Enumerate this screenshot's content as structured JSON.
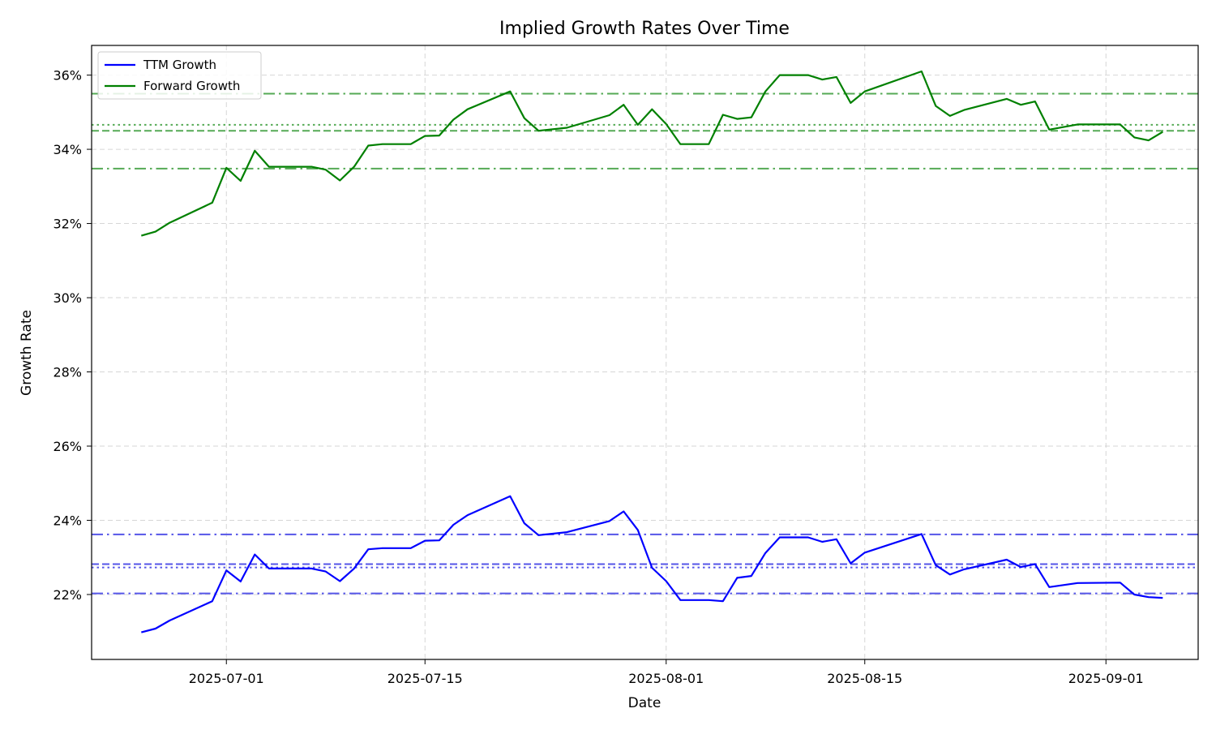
{
  "chart_data": {
    "type": "line",
    "title": "Implied Growth Rates Over Time",
    "xlabel": "Date",
    "ylabel": "Growth Rate",
    "x_range": [
      "2025-06-21T12:00",
      "2025-09-07T12:00"
    ],
    "ylim": [
      20.25,
      36.8
    ],
    "grid": true,
    "legend_position": "top-left",
    "x_ticks": [
      "2025-07-01",
      "2025-07-15",
      "2025-08-01",
      "2025-08-15",
      "2025-09-01"
    ],
    "y_ticks": [
      22,
      24,
      26,
      28,
      30,
      32,
      34,
      36
    ],
    "y_tick_format": "%",
    "series": [
      {
        "name": "TTM Growth",
        "color": "#0000ff",
        "points": [
          [
            "2025-06-25",
            20.98
          ],
          [
            "2025-06-26",
            21.08
          ],
          [
            "2025-06-27",
            21.3
          ],
          [
            "2025-06-30",
            21.82
          ],
          [
            "2025-07-01",
            22.65
          ],
          [
            "2025-07-02",
            22.35
          ],
          [
            "2025-07-03",
            23.08
          ],
          [
            "2025-07-04",
            22.7
          ],
          [
            "2025-07-07",
            22.7
          ],
          [
            "2025-07-08",
            22.62
          ],
          [
            "2025-07-09",
            22.36
          ],
          [
            "2025-07-10",
            22.7
          ],
          [
            "2025-07-11",
            23.22
          ],
          [
            "2025-07-12",
            23.25
          ],
          [
            "2025-07-14",
            23.25
          ],
          [
            "2025-07-15",
            23.45
          ],
          [
            "2025-07-16",
            23.46
          ],
          [
            "2025-07-17",
            23.88
          ],
          [
            "2025-07-18",
            24.14
          ],
          [
            "2025-07-21",
            24.65
          ],
          [
            "2025-07-22",
            23.92
          ],
          [
            "2025-07-23",
            23.6
          ],
          [
            "2025-07-25",
            23.68
          ],
          [
            "2025-07-28",
            23.98
          ],
          [
            "2025-07-29",
            24.24
          ],
          [
            "2025-07-30",
            23.74
          ],
          [
            "2025-07-31",
            22.72
          ],
          [
            "2025-08-01",
            22.36
          ],
          [
            "2025-08-02",
            21.85
          ],
          [
            "2025-08-04",
            21.85
          ],
          [
            "2025-08-05",
            21.82
          ],
          [
            "2025-08-06",
            22.45
          ],
          [
            "2025-08-07",
            22.5
          ],
          [
            "2025-08-08",
            23.12
          ],
          [
            "2025-08-09",
            23.54
          ],
          [
            "2025-08-11",
            23.54
          ],
          [
            "2025-08-12",
            23.42
          ],
          [
            "2025-08-13",
            23.49
          ],
          [
            "2025-08-14",
            22.84
          ],
          [
            "2025-08-15",
            23.13
          ],
          [
            "2025-08-19",
            23.63
          ],
          [
            "2025-08-20",
            22.79
          ],
          [
            "2025-08-21",
            22.54
          ],
          [
            "2025-08-22",
            22.68
          ],
          [
            "2025-08-25",
            22.94
          ],
          [
            "2025-08-26",
            22.74
          ],
          [
            "2025-08-27",
            22.82
          ],
          [
            "2025-08-28",
            22.2
          ],
          [
            "2025-08-30",
            22.31
          ],
          [
            "2025-09-02",
            22.32
          ],
          [
            "2025-09-03",
            22.0
          ],
          [
            "2025-09-04",
            21.93
          ],
          [
            "2025-09-05",
            21.91
          ]
        ]
      },
      {
        "name": "Forward Growth",
        "color": "#008000",
        "points": [
          [
            "2025-06-25",
            31.67
          ],
          [
            "2025-06-26",
            31.78
          ],
          [
            "2025-06-27",
            32.02
          ],
          [
            "2025-06-30",
            32.56
          ],
          [
            "2025-07-01",
            33.5
          ],
          [
            "2025-07-02",
            33.15
          ],
          [
            "2025-07-03",
            33.96
          ],
          [
            "2025-07-04",
            33.53
          ],
          [
            "2025-07-07",
            33.53
          ],
          [
            "2025-07-08",
            33.45
          ],
          [
            "2025-07-09",
            33.16
          ],
          [
            "2025-07-10",
            33.53
          ],
          [
            "2025-07-11",
            34.1
          ],
          [
            "2025-07-12",
            34.14
          ],
          [
            "2025-07-14",
            34.14
          ],
          [
            "2025-07-15",
            34.36
          ],
          [
            "2025-07-16",
            34.37
          ],
          [
            "2025-07-17",
            34.8
          ],
          [
            "2025-07-18",
            35.08
          ],
          [
            "2025-07-21",
            35.56
          ],
          [
            "2025-07-22",
            34.84
          ],
          [
            "2025-07-23",
            34.5
          ],
          [
            "2025-07-25",
            34.58
          ],
          [
            "2025-07-28",
            34.92
          ],
          [
            "2025-07-29",
            35.2
          ],
          [
            "2025-07-30",
            34.66
          ],
          [
            "2025-07-31",
            35.08
          ],
          [
            "2025-08-01",
            34.68
          ],
          [
            "2025-08-02",
            34.14
          ],
          [
            "2025-08-04",
            34.14
          ],
          [
            "2025-08-05",
            34.93
          ],
          [
            "2025-08-06",
            34.82
          ],
          [
            "2025-08-07",
            34.86
          ],
          [
            "2025-08-08",
            35.56
          ],
          [
            "2025-08-09",
            36.0
          ],
          [
            "2025-08-11",
            36.0
          ],
          [
            "2025-08-12",
            35.88
          ],
          [
            "2025-08-13",
            35.95
          ],
          [
            "2025-08-14",
            35.25
          ],
          [
            "2025-08-15",
            35.56
          ],
          [
            "2025-08-19",
            36.1
          ],
          [
            "2025-08-20",
            35.17
          ],
          [
            "2025-08-21",
            34.9
          ],
          [
            "2025-08-22",
            35.06
          ],
          [
            "2025-08-25",
            35.36
          ],
          [
            "2025-08-26",
            35.2
          ],
          [
            "2025-08-27",
            35.29
          ],
          [
            "2025-08-28",
            34.53
          ],
          [
            "2025-08-30",
            34.67
          ],
          [
            "2025-09-02",
            34.67
          ],
          [
            "2025-09-03",
            34.32
          ],
          [
            "2025-09-04",
            34.24
          ],
          [
            "2025-09-05",
            34.47
          ]
        ]
      }
    ],
    "reference_lines": [
      {
        "series": "TTM Growth",
        "value": 23.62,
        "style": "dashdot"
      },
      {
        "series": "TTM Growth",
        "value": 22.82,
        "style": "dashed"
      },
      {
        "series": "TTM Growth",
        "value": 22.73,
        "style": "dotted"
      },
      {
        "series": "TTM Growth",
        "value": 22.03,
        "style": "dashdot"
      },
      {
        "series": "Forward Growth",
        "value": 35.5,
        "style": "dashdot"
      },
      {
        "series": "Forward Growth",
        "value": 34.66,
        "style": "dotted"
      },
      {
        "series": "Forward Growth",
        "value": 34.5,
        "style": "dashed"
      },
      {
        "series": "Forward Growth",
        "value": 33.48,
        "style": "dashdot"
      }
    ],
    "reference_colors": {
      "TTM Growth": "#5555e8",
      "Forward Growth": "#55aa55"
    }
  }
}
